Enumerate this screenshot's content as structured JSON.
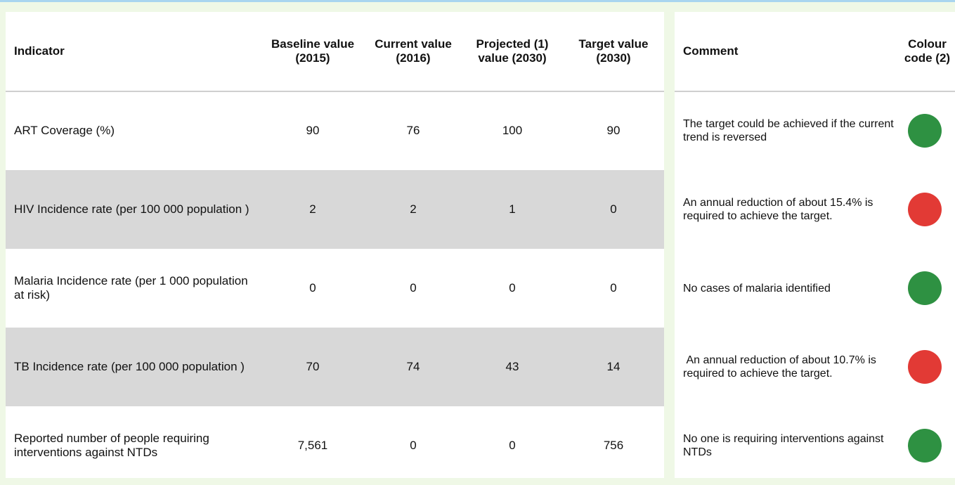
{
  "table": {
    "headers": [
      "Indicator",
      "Baseline value (2015)",
      "Current value (2016)",
      "Projected (1) value (2030)",
      "Target value (2030)",
      "Comment",
      "Colour code (2)"
    ],
    "rows": [
      [
        "ART Coverage (%)",
        "90",
        "76",
        "100",
        "90",
        "The target could be achieved if the current trend is reversed"
      ],
      [
        "HIV Incidence rate (per 100 000 population )",
        "2",
        "2",
        "1",
        "0",
        "An annual reduction of about 15.4% is required to achieve the target."
      ],
      [
        "Malaria Incidence rate (per 1 000 population at risk)",
        "0",
        "0",
        "0",
        "0",
        "No cases of malaria identified"
      ],
      [
        "TB Incidence rate (per 100 000 population )",
        "70",
        "74",
        "43",
        "14",
        " An annual reduction of about 10.7% is required to achieve the target."
      ],
      [
        "Reported number of people requiring interventions against NTDs",
        "7,561",
        "0",
        "0",
        "756",
        "No one is requiring interventions against NTDs"
      ]
    ],
    "colours": [
      "#2e9142",
      "#e23a35",
      "#2e9142",
      "#e23a35",
      "#2e9142"
    ]
  }
}
